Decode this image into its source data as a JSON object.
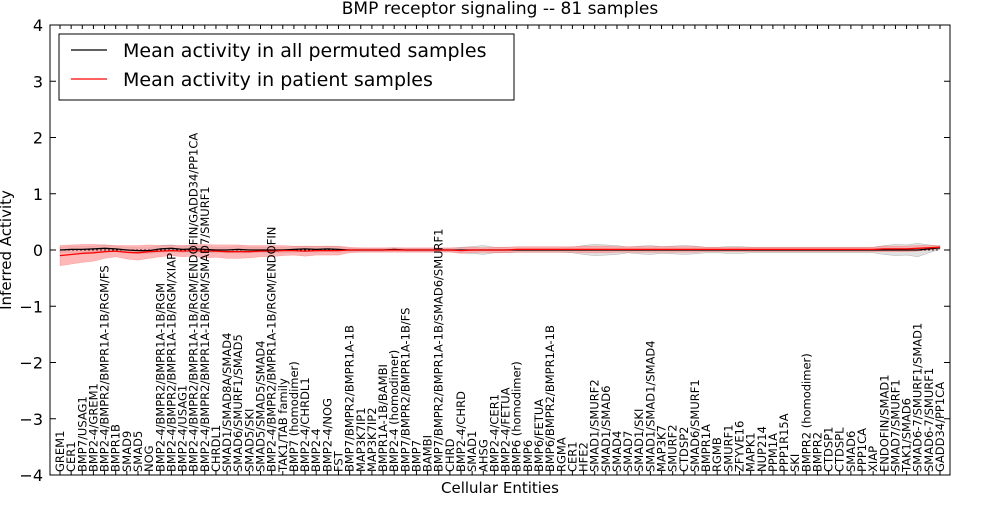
{
  "chart_data": {
    "type": "line",
    "title": "BMP receptor signaling -- 81 samples",
    "xlabel": "Cellular Entities",
    "ylabel": "Inferred Activity",
    "ylim": [
      -4,
      4
    ],
    "yticks": [
      -4,
      -3,
      -2,
      -1,
      0,
      1,
      2,
      3,
      4
    ],
    "grid": false,
    "legend_position": "top-left",
    "categories": [
      "GREM1",
      "CER1",
      "BMP7/USAG1",
      "BMP2-4/GREM1",
      "BMP2-4/BMPR2/BMPR1A-1B/RGM/FS",
      "BMPR1B",
      "SMAD9",
      "SMAD5",
      "NOG",
      "BMP2-4/BMPR2/BMPR1A-1B/RGM",
      "BMP2-4/BMPR2/BMPR1A-1B/RGM/XIAP",
      "BMP2-4/USAG1",
      "BMP2-4/BMPR2/BMPR1A-1B/RGM/ENDOFIN/GADD34/PP1CA",
      "BMP2-4/BMPR2/BMPR1A-1B/RGM/SMAD7/SMURF1",
      "CHRDL1",
      "SMAD1/SMAD8A/SMAD4",
      "SMAD6/SMURF1/SMAD5",
      "SMAD5/SKI",
      "SMAD5/SMAD5/SMAD4",
      "BMP2-4/BMPR2/BMPR1A-1B/RGM/ENDOFIN",
      "TAK1/TAB family",
      "BMP7 (homodimer)",
      "BMP2-4/CHRDL1",
      "BMP2-4",
      "BMP2-4/NOG",
      "FST",
      "BMP7/BMPR2/BMPR1A-1B",
      "MAP3K7IP1",
      "MAP3K7IP2",
      "BMPR1A-1B/BAMBI",
      "BMP2-4 (homodimer)",
      "BMP7/BMPR2/BMPR1A-1B/FS",
      "BMP7",
      "BAMBI",
      "BMP7/BMPR2/BMPR1A-1B/SMAD6/SMURF1",
      "CHRD",
      "BMP2-4/CHRD",
      "SMAD1",
      "AHSG",
      "BMP2-4/CER1",
      "BMP2-4/FETUA",
      "BMP6 (homodimer)",
      "BMP6",
      "BMP6/FETUA",
      "BMP6/BMPR2/BMPR1A-1B",
      "RGMA",
      "CER1",
      "HFE2",
      "SMAD1/SMURF2",
      "SMAD1/SMAD6",
      "SMAD4",
      "SMAD7",
      "SMAD1/SKI",
      "SMAD1/SMAD1/SMAD4",
      "MAP3K7",
      "SMURF2",
      "CTDSP2",
      "SMAD6/SMURF1",
      "BMPR1A",
      "RGMB",
      "SMURF1",
      "ZFYVE16",
      "MAPK1",
      "NUP214",
      "PPM1A",
      "PPP1R15A",
      "SKI",
      "BMPR2 (homodimer)",
      "BMPR2",
      "CTDSP1",
      "CTDSPL",
      "SMAD6",
      "PPP1CA",
      "XIAP",
      "ENDOFIN/SMAD1",
      "SMAD7/SMURF1",
      "TAK1/SMAD6",
      "SMAD6-7/SMURF1/SMAD1",
      "SMAD6-7/SMURF1",
      "GADD34/PP1CA"
    ],
    "series": [
      {
        "name": "Mean activity in all permuted samples",
        "color": "#000000",
        "band_color": "#c8c8c8",
        "values": [
          0.0,
          0.01,
          0.01,
          0.02,
          0.03,
          0.02,
          0.0,
          -0.01,
          -0.01,
          0.02,
          0.03,
          0.01,
          0.02,
          0.01,
          0.0,
          0.0,
          0.01,
          0.0,
          0.0,
          0.0,
          0.0,
          0.01,
          0.02,
          0.01,
          0.02,
          0.01,
          0.0,
          0.0,
          0.0,
          0.0,
          0.01,
          0.0,
          0.0,
          0.0,
          0.0,
          0.0,
          0.0,
          0.0,
          0.0,
          0.0,
          0.0,
          0.0,
          0.0,
          0.0,
          0.0,
          0.0,
          0.0,
          0.0,
          0.0,
          0.0,
          0.0,
          0.0,
          0.0,
          0.0,
          0.0,
          0.0,
          0.0,
          0.0,
          0.0,
          0.0,
          0.0,
          0.0,
          0.0,
          0.0,
          0.0,
          0.0,
          0.0,
          0.0,
          0.0,
          0.0,
          0.0,
          0.0,
          0.0,
          0.0,
          0.0,
          0.0,
          0.0,
          0.0,
          0.02,
          0.04
        ],
        "band": [
          0.05,
          0.05,
          0.05,
          0.05,
          0.06,
          0.05,
          0.05,
          0.05,
          0.05,
          0.06,
          0.06,
          0.05,
          0.06,
          0.05,
          0.05,
          0.05,
          0.05,
          0.05,
          0.05,
          0.05,
          0.05,
          0.05,
          0.05,
          0.05,
          0.05,
          0.05,
          0.03,
          0.03,
          0.03,
          0.03,
          0.03,
          0.03,
          0.03,
          0.03,
          0.03,
          0.03,
          0.05,
          0.06,
          0.08,
          0.05,
          0.05,
          0.04,
          0.04,
          0.04,
          0.04,
          0.04,
          0.05,
          0.08,
          0.1,
          0.09,
          0.08,
          0.05,
          0.07,
          0.08,
          0.06,
          0.07,
          0.08,
          0.07,
          0.05,
          0.05,
          0.06,
          0.06,
          0.05,
          0.05,
          0.05,
          0.05,
          0.05,
          0.05,
          0.05,
          0.05,
          0.05,
          0.05,
          0.05,
          0.05,
          0.08,
          0.1,
          0.09,
          0.12,
          0.07,
          0.03
        ]
      },
      {
        "name": "Mean activity in patient samples",
        "color": "#ff0000",
        "band_color": "#ff9090",
        "values": [
          -0.1,
          -0.08,
          -0.06,
          -0.05,
          -0.03,
          -0.02,
          -0.04,
          -0.05,
          -0.03,
          -0.02,
          -0.01,
          -0.02,
          -0.01,
          -0.02,
          -0.02,
          -0.03,
          -0.03,
          -0.03,
          -0.02,
          -0.02,
          -0.01,
          -0.01,
          -0.02,
          -0.01,
          -0.01,
          -0.01,
          0.0,
          0.0,
          0.0,
          0.0,
          0.0,
          0.0,
          0.0,
          0.0,
          0.0,
          0.0,
          -0.01,
          0.0,
          0.0,
          0.0,
          0.0,
          0.01,
          0.01,
          0.01,
          0.01,
          0.01,
          0.01,
          0.01,
          0.01,
          0.01,
          0.01,
          0.01,
          0.01,
          0.01,
          0.01,
          0.01,
          0.01,
          0.01,
          0.01,
          0.01,
          0.01,
          0.01,
          0.01,
          0.01,
          0.01,
          0.01,
          0.01,
          0.01,
          0.01,
          0.01,
          0.01,
          0.01,
          0.01,
          0.01,
          0.02,
          0.02,
          0.02,
          0.03,
          0.04,
          0.05
        ],
        "band": [
          0.18,
          0.17,
          0.16,
          0.15,
          0.12,
          0.1,
          0.12,
          0.13,
          0.12,
          0.1,
          0.09,
          0.1,
          0.1,
          0.12,
          0.11,
          0.12,
          0.12,
          0.11,
          0.1,
          0.1,
          0.09,
          0.08,
          0.09,
          0.08,
          0.08,
          0.08,
          0.05,
          0.04,
          0.04,
          0.04,
          0.04,
          0.04,
          0.04,
          0.04,
          0.04,
          0.04,
          0.05,
          0.05,
          0.04,
          0.05,
          0.05,
          0.05,
          0.05,
          0.05,
          0.05,
          0.05,
          0.05,
          0.06,
          0.06,
          0.06,
          0.05,
          0.05,
          0.05,
          0.05,
          0.05,
          0.05,
          0.05,
          0.05,
          0.04,
          0.04,
          0.04,
          0.04,
          0.04,
          0.04,
          0.04,
          0.04,
          0.04,
          0.04,
          0.04,
          0.04,
          0.04,
          0.04,
          0.04,
          0.04,
          0.05,
          0.05,
          0.05,
          0.05,
          0.04,
          0.03
        ]
      }
    ]
  }
}
